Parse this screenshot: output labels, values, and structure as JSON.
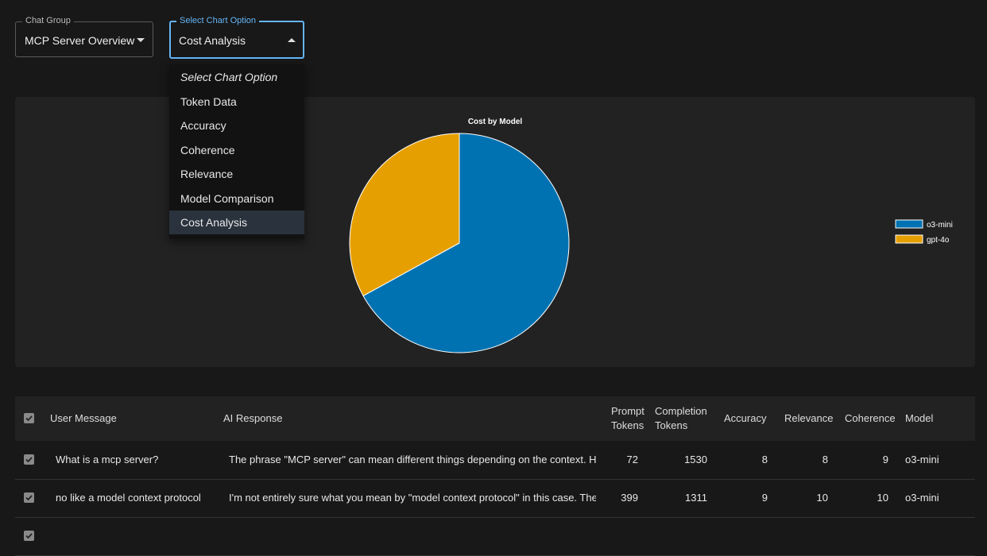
{
  "controls": {
    "chat_group": {
      "label": "Chat Group",
      "value": "MCP Server Overview"
    },
    "chart_option": {
      "label": "Select Chart Option",
      "value": "Cost Analysis",
      "options": [
        "Select Chart Option",
        "Token Data",
        "Accuracy",
        "Coherence",
        "Relevance",
        "Model Comparison",
        "Cost Analysis"
      ]
    }
  },
  "chart_data": {
    "type": "pie",
    "title": "Cost by Model",
    "categories": [
      "o3-mini",
      "gpt-4o"
    ],
    "values": [
      67,
      33
    ],
    "colors": [
      "#0072b2",
      "#e69f00"
    ]
  },
  "table": {
    "columns": [
      "User Message",
      "AI Response",
      "Prompt Tokens",
      "Completion Tokens",
      "Accuracy",
      "Relevance",
      "Coherence",
      "Model"
    ],
    "rows": [
      [
        "What is a mcp server?",
        "The phrase \"MCP server\" can mean different things depending on the context. Here",
        72,
        1530,
        8,
        8,
        9,
        "o3-mini"
      ],
      [
        "no like a model context protocol",
        "I'm not entirely sure what you mean by \"model context protocol\" in this case. The ter",
        399,
        1311,
        9,
        10,
        10,
        "o3-mini"
      ]
    ]
  }
}
